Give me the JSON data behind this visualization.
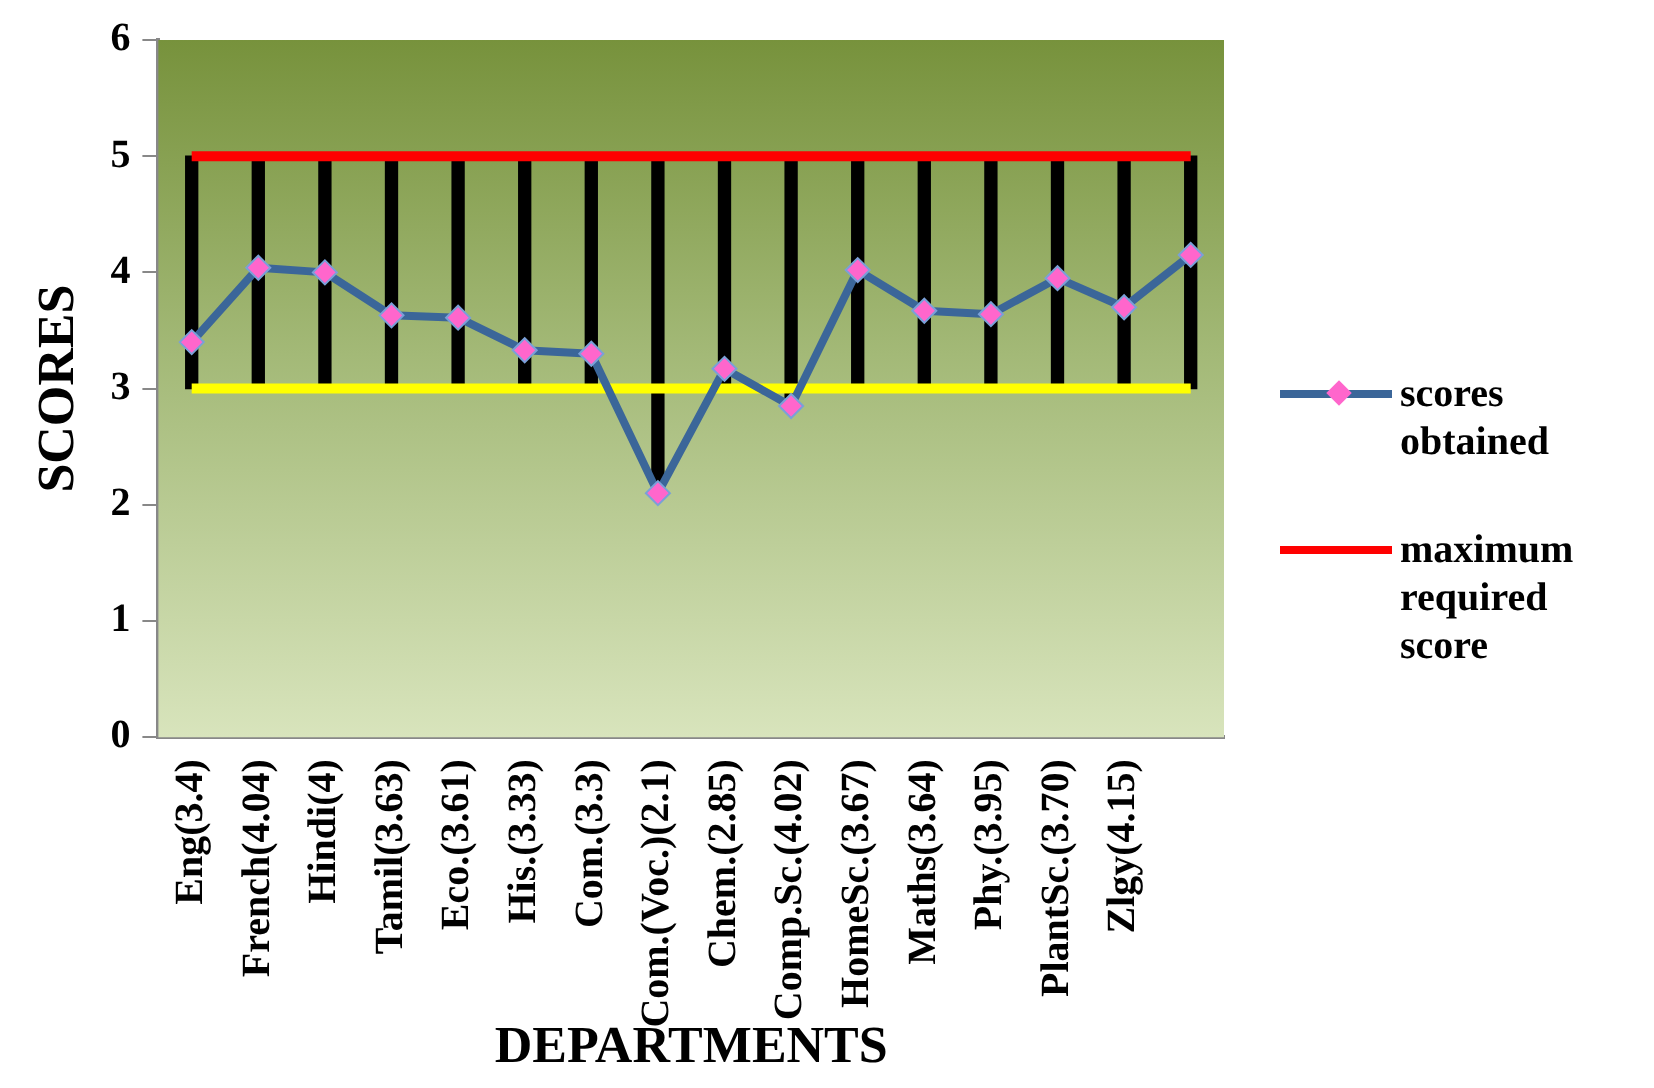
{
  "chart_data": {
    "type": "line",
    "xlabel": "DEPARTMENTS",
    "ylabel": "SCORES",
    "categories": [
      "Eng(3.4)",
      "French(4.04)",
      "Hindi(4)",
      "Tamil(3.63)",
      "Eco.(3.61)",
      "His.(3.33)",
      "Com.(3.3)",
      "Com.(Voc.)(2.1)",
      "Chem.(2.85)",
      "Comp.Sc.(4.02)",
      "HomeSc.(3.67)",
      "Maths(3.64)",
      "Phy.(3.95)",
      "PlantSc.(3.70)",
      "Zlgy(4.15)",
      null
    ],
    "series": [
      {
        "type": "bar",
        "color": "#000000",
        "base": [
          3,
          3,
          3,
          3,
          3,
          3,
          3,
          2.1,
          3,
          2.85,
          3,
          3,
          3,
          3,
          3,
          3
        ],
        "values": [
          2,
          2,
          2,
          2,
          2,
          2,
          2,
          2.9,
          2,
          2.15,
          2,
          2,
          2,
          2,
          2,
          2
        ]
      },
      {
        "color": "#ffff00",
        "marker": "none",
        "values": [
          3,
          3,
          3,
          3,
          3,
          3,
          3,
          3,
          3,
          3,
          3,
          3,
          3,
          3,
          3,
          3
        ]
      },
      {
        "name": "scores obtained",
        "color": "#3b6699",
        "marker": "diamond",
        "values": [
          3.4,
          4.04,
          4.0,
          3.63,
          3.61,
          3.33,
          3.3,
          2.1,
          3.17,
          2.85,
          4.02,
          3.67,
          3.64,
          3.95,
          3.7,
          4.15
        ]
      },
      {
        "name": "maximum required score",
        "color": "#ff0000",
        "marker": "none",
        "values": [
          5,
          5,
          5,
          5,
          5,
          5,
          5,
          5,
          5,
          5,
          5,
          5,
          5,
          5,
          5,
          5
        ]
      }
    ],
    "ylim": [
      0,
      6
    ],
    "yticks": [
      0,
      1,
      2,
      3,
      4,
      5,
      6
    ],
    "grid": false,
    "legend": "right"
  }
}
